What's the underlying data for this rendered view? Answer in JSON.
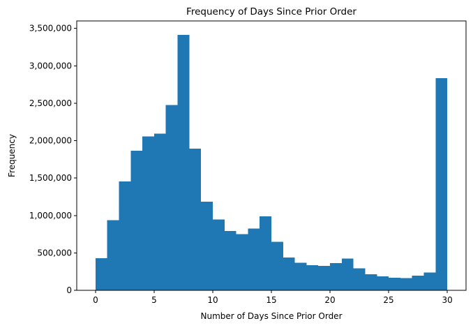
{
  "chart_data": {
    "type": "bar",
    "title": "Frequency of Days Since Prior Order",
    "xlabel": "Number of Days Since Prior Order",
    "ylabel": "Frequency",
    "xlim": [
      -1.6,
      31.6
    ],
    "ylim": [
      0,
      3600000
    ],
    "grid": false,
    "legend": "none",
    "bar_color": "#1f77b4",
    "bin_edges": [
      0,
      1,
      2,
      3,
      4,
      5,
      6,
      7,
      8,
      9,
      10,
      11,
      12,
      13,
      14,
      15,
      16,
      17,
      18,
      19,
      20,
      21,
      22,
      23,
      24,
      25,
      26,
      27,
      28,
      29,
      30
    ],
    "values": [
      430000,
      935000,
      1455000,
      1865000,
      2055000,
      2095000,
      2475000,
      3415000,
      1895000,
      1185000,
      945000,
      795000,
      750000,
      825000,
      990000,
      650000,
      440000,
      370000,
      335000,
      325000,
      365000,
      425000,
      295000,
      215000,
      185000,
      170000,
      165000,
      195000,
      240000,
      2835000
    ],
    "xticks": [
      0,
      5,
      10,
      15,
      20,
      25,
      30
    ],
    "xtick_labels": [
      "0",
      "5",
      "10",
      "15",
      "20",
      "25",
      "30"
    ],
    "yticks": [
      0,
      500000,
      1000000,
      1500000,
      2000000,
      2500000,
      3000000,
      3500000
    ],
    "ytick_labels": [
      "0",
      "500,000",
      "1,000,000",
      "1,500,000",
      "2,000,000",
      "2,500,000",
      "3,000,000",
      "3,500,000"
    ]
  }
}
